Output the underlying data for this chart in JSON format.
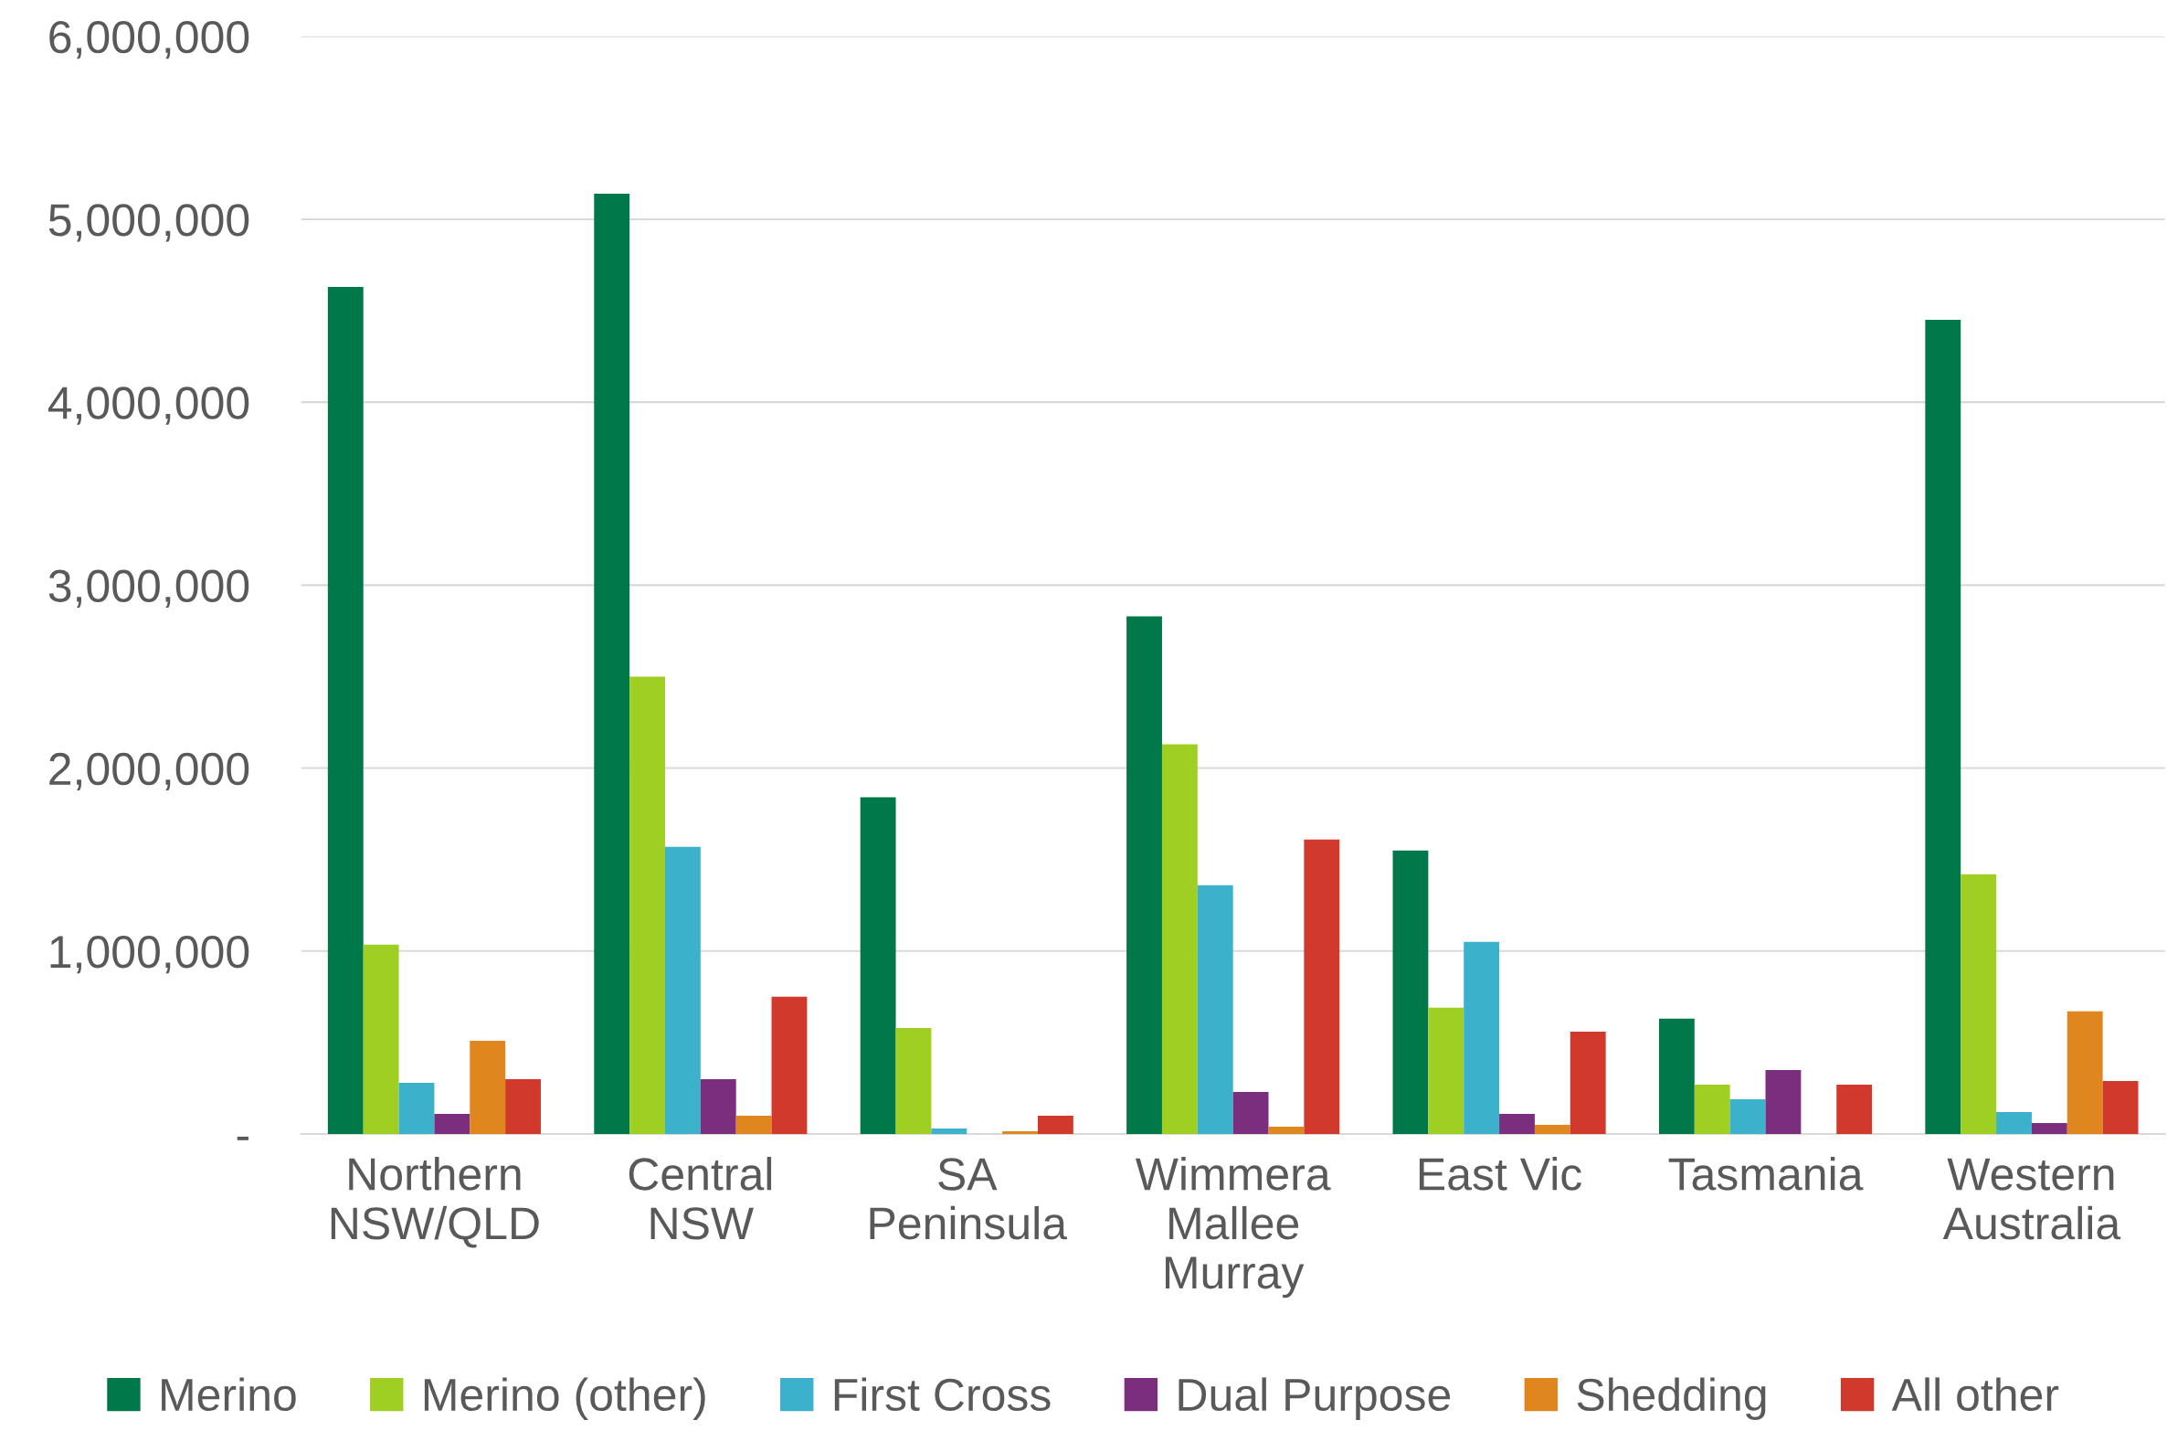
{
  "chart_data": {
    "type": "bar",
    "categories": [
      "Northern\nNSW/QLD",
      "Central\nNSW",
      "SA\nPeninsula",
      "Wimmera\nMallee\nMurray",
      "East Vic",
      "Tasmania",
      "Western\nAustralia"
    ],
    "series": [
      {
        "name": "Merino",
        "color": "#00784a",
        "values": [
          4630000,
          5140000,
          1840000,
          2830000,
          1550000,
          630000,
          4450000
        ]
      },
      {
        "name": "Merino (other)",
        "color": "#9ecf22",
        "values": [
          1035000,
          2500000,
          580000,
          2130000,
          690000,
          270000,
          1420000
        ]
      },
      {
        "name": "First Cross",
        "color": "#3bb1cc",
        "values": [
          280000,
          1570000,
          30000,
          1360000,
          1050000,
          190000,
          120000
        ]
      },
      {
        "name": "Dual Purpose",
        "color": "#7b2d7e",
        "values": [
          110000,
          300000,
          null,
          230000,
          110000,
          350000,
          60000
        ]
      },
      {
        "name": "Shedding",
        "color": "#e0861e",
        "values": [
          510000,
          100000,
          15000,
          40000,
          50000,
          null,
          670000
        ]
      },
      {
        "name": "All other",
        "color": "#d0392b",
        "values": [
          300000,
          750000,
          100000,
          1610000,
          560000,
          270000,
          290000
        ]
      }
    ],
    "ylim": [
      0,
      6000000
    ],
    "yticks": [
      {
        "value": 0,
        "label": "-"
      },
      {
        "value": 1000000,
        "label": "1,000,000"
      },
      {
        "value": 2000000,
        "label": "2,000,000"
      },
      {
        "value": 3000000,
        "label": "3,000,000"
      },
      {
        "value": 4000000,
        "label": "4,000,000"
      },
      {
        "value": 5000000,
        "label": "5,000,000"
      },
      {
        "value": 6000000,
        "label": "6,000,000"
      }
    ],
    "grid": "y",
    "legend": "bottom"
  }
}
